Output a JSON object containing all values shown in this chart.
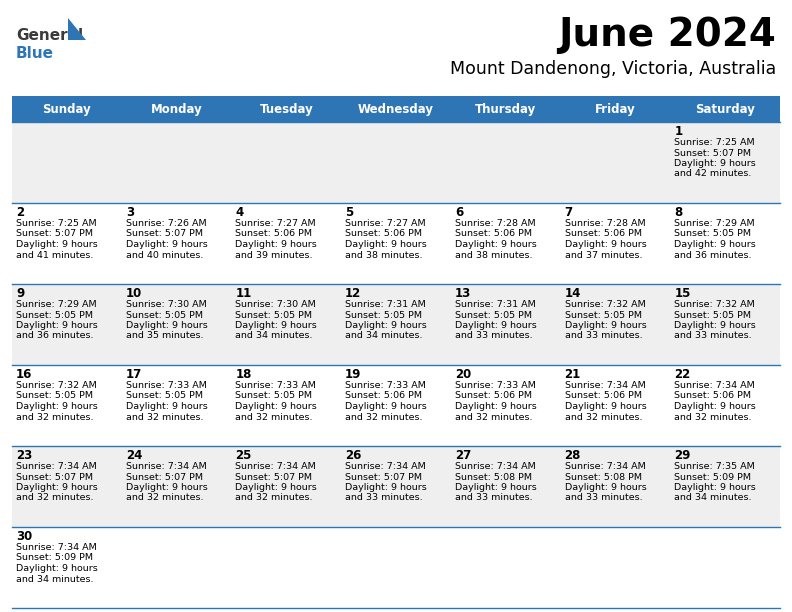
{
  "title": "June 2024",
  "subtitle": "Mount Dandenong, Victoria, Australia",
  "header_color": "#2E75B6",
  "header_text_color": "#FFFFFF",
  "days_of_week": [
    "Sunday",
    "Monday",
    "Tuesday",
    "Wednesday",
    "Thursday",
    "Friday",
    "Saturday"
  ],
  "bg_color": "#FFFFFF",
  "row_alt_color": "#EFEFEF",
  "cell_border_color": "#2E75B6",
  "day_num_color": "#000000",
  "info_color": "#000000",
  "fig_width": 7.92,
  "fig_height": 6.12,
  "dpi": 100,
  "calendar_data": [
    [
      {
        "day": "",
        "sunrise": "",
        "sunset": "",
        "daylight_m": 0
      },
      {
        "day": "",
        "sunrise": "",
        "sunset": "",
        "daylight_m": 0
      },
      {
        "day": "",
        "sunrise": "",
        "sunset": "",
        "daylight_m": 0
      },
      {
        "day": "",
        "sunrise": "",
        "sunset": "",
        "daylight_m": 0
      },
      {
        "day": "",
        "sunrise": "",
        "sunset": "",
        "daylight_m": 0
      },
      {
        "day": "",
        "sunrise": "",
        "sunset": "",
        "daylight_m": 0
      },
      {
        "day": "1",
        "sunrise": "7:25 AM",
        "sunset": "5:07 PM",
        "daylight_m": 42
      }
    ],
    [
      {
        "day": "2",
        "sunrise": "7:25 AM",
        "sunset": "5:07 PM",
        "daylight_m": 41
      },
      {
        "day": "3",
        "sunrise": "7:26 AM",
        "sunset": "5:07 PM",
        "daylight_m": 40
      },
      {
        "day": "4",
        "sunrise": "7:27 AM",
        "sunset": "5:06 PM",
        "daylight_m": 39
      },
      {
        "day": "5",
        "sunrise": "7:27 AM",
        "sunset": "5:06 PM",
        "daylight_m": 38
      },
      {
        "day": "6",
        "sunrise": "7:28 AM",
        "sunset": "5:06 PM",
        "daylight_m": 38
      },
      {
        "day": "7",
        "sunrise": "7:28 AM",
        "sunset": "5:06 PM",
        "daylight_m": 37
      },
      {
        "day": "8",
        "sunrise": "7:29 AM",
        "sunset": "5:05 PM",
        "daylight_m": 36
      }
    ],
    [
      {
        "day": "9",
        "sunrise": "7:29 AM",
        "sunset": "5:05 PM",
        "daylight_m": 36
      },
      {
        "day": "10",
        "sunrise": "7:30 AM",
        "sunset": "5:05 PM",
        "daylight_m": 35
      },
      {
        "day": "11",
        "sunrise": "7:30 AM",
        "sunset": "5:05 PM",
        "daylight_m": 34
      },
      {
        "day": "12",
        "sunrise": "7:31 AM",
        "sunset": "5:05 PM",
        "daylight_m": 34
      },
      {
        "day": "13",
        "sunrise": "7:31 AM",
        "sunset": "5:05 PM",
        "daylight_m": 33
      },
      {
        "day": "14",
        "sunrise": "7:32 AM",
        "sunset": "5:05 PM",
        "daylight_m": 33
      },
      {
        "day": "15",
        "sunrise": "7:32 AM",
        "sunset": "5:05 PM",
        "daylight_m": 33
      }
    ],
    [
      {
        "day": "16",
        "sunrise": "7:32 AM",
        "sunset": "5:05 PM",
        "daylight_m": 32
      },
      {
        "day": "17",
        "sunrise": "7:33 AM",
        "sunset": "5:05 PM",
        "daylight_m": 32
      },
      {
        "day": "18",
        "sunrise": "7:33 AM",
        "sunset": "5:05 PM",
        "daylight_m": 32
      },
      {
        "day": "19",
        "sunrise": "7:33 AM",
        "sunset": "5:06 PM",
        "daylight_m": 32
      },
      {
        "day": "20",
        "sunrise": "7:33 AM",
        "sunset": "5:06 PM",
        "daylight_m": 32
      },
      {
        "day": "21",
        "sunrise": "7:34 AM",
        "sunset": "5:06 PM",
        "daylight_m": 32
      },
      {
        "day": "22",
        "sunrise": "7:34 AM",
        "sunset": "5:06 PM",
        "daylight_m": 32
      }
    ],
    [
      {
        "day": "23",
        "sunrise": "7:34 AM",
        "sunset": "5:07 PM",
        "daylight_m": 32
      },
      {
        "day": "24",
        "sunrise": "7:34 AM",
        "sunset": "5:07 PM",
        "daylight_m": 32
      },
      {
        "day": "25",
        "sunrise": "7:34 AM",
        "sunset": "5:07 PM",
        "daylight_m": 32
      },
      {
        "day": "26",
        "sunrise": "7:34 AM",
        "sunset": "5:07 PM",
        "daylight_m": 33
      },
      {
        "day": "27",
        "sunrise": "7:34 AM",
        "sunset": "5:08 PM",
        "daylight_m": 33
      },
      {
        "day": "28",
        "sunrise": "7:34 AM",
        "sunset": "5:08 PM",
        "daylight_m": 33
      },
      {
        "day": "29",
        "sunrise": "7:35 AM",
        "sunset": "5:09 PM",
        "daylight_m": 34
      }
    ],
    [
      {
        "day": "30",
        "sunrise": "7:34 AM",
        "sunset": "5:09 PM",
        "daylight_m": 34
      },
      {
        "day": "",
        "sunrise": "",
        "sunset": "",
        "daylight_m": 0
      },
      {
        "day": "",
        "sunrise": "",
        "sunset": "",
        "daylight_m": 0
      },
      {
        "day": "",
        "sunrise": "",
        "sunset": "",
        "daylight_m": 0
      },
      {
        "day": "",
        "sunrise": "",
        "sunset": "",
        "daylight_m": 0
      },
      {
        "day": "",
        "sunrise": "",
        "sunset": "",
        "daylight_m": 0
      },
      {
        "day": "",
        "sunrise": "",
        "sunset": "",
        "daylight_m": 0
      }
    ]
  ]
}
